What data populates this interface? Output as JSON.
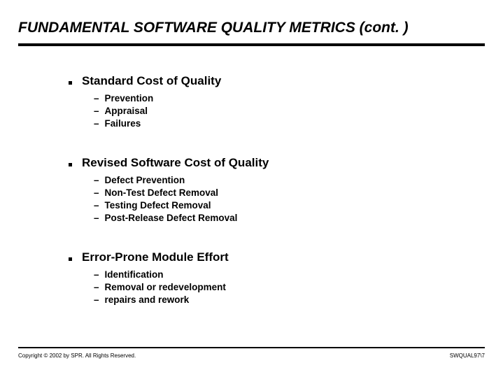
{
  "title": "FUNDAMENTAL SOFTWARE QUALITY METRICS (cont. )",
  "sections": [
    {
      "heading": "Standard Cost of Quality",
      "items": [
        "Prevention",
        "Appraisal",
        "Failures"
      ]
    },
    {
      "heading": "Revised Software Cost of Quality",
      "items": [
        "Defect Prevention",
        "Non-Test Defect Removal",
        "Testing Defect Removal",
        "Post-Release Defect Removal"
      ]
    },
    {
      "heading": "Error-Prone Module Effort",
      "items": [
        "Identification",
        "Removal or redevelopment",
        "repairs and rework"
      ]
    }
  ],
  "footer": {
    "copyright": "Copyright © 2002 by SPR. All Rights Reserved.",
    "slide_id": "SWQUAL97\\7"
  },
  "style": {
    "background_color": "#ffffff",
    "text_color": "#000000",
    "title_fontsize": 21,
    "bullet_fontsize": 17,
    "sub_fontsize": 13.5,
    "footer_fontsize": 8,
    "title_rule_width": 4,
    "footer_rule_width": 2
  }
}
